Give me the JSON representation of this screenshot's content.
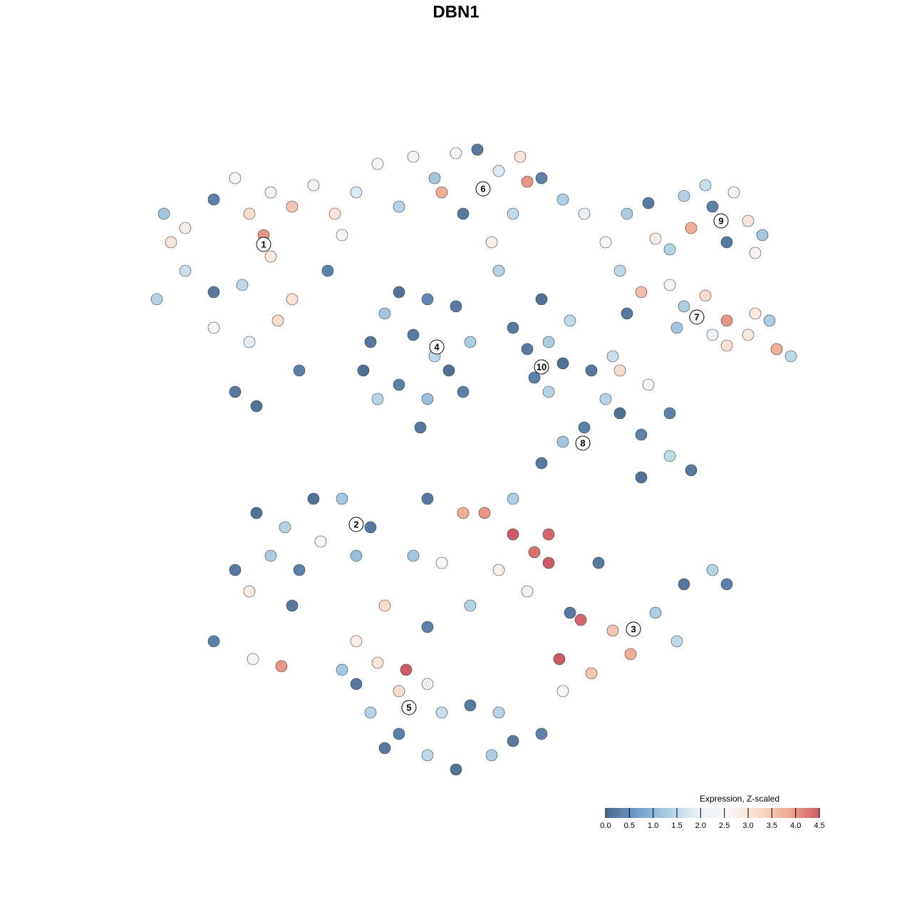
{
  "chart_data": {
    "type": "scatter",
    "title": "DBN1",
    "xlim": [
      0,
      128
    ],
    "ylim": [
      0,
      128
    ],
    "colorbar": {
      "title": "Expression, Z-scaled",
      "lim": [
        0,
        4.5
      ],
      "colors": [
        "#4a6a8f",
        "#6c9bc8",
        "#a9cde3",
        "#e8f0f6",
        "#f7f7f7",
        "#f9dccb",
        "#f0a98d",
        "#d05a63"
      ],
      "ticks": [
        {
          "value": 0,
          "label": "0.0"
        },
        {
          "value": 0.5,
          "label": "0.5"
        },
        {
          "value": 1,
          "label": "1.0"
        },
        {
          "value": 1.5,
          "label": "1.5"
        },
        {
          "value": 2,
          "label": "2.0"
        },
        {
          "value": 2.5,
          "label": "2.5"
        },
        {
          "value": 3,
          "label": "3.0"
        },
        {
          "value": 3.5,
          "label": "3.5"
        },
        {
          "value": 4,
          "label": "4.0"
        },
        {
          "value": 4.5,
          "label": "4.5"
        }
      ]
    },
    "series": [
      {
        "name": "1",
        "label_x": 37,
        "label_y": 93.7,
        "x": [
          23,
          26,
          30,
          33,
          35,
          38,
          41,
          44,
          47,
          50,
          53,
          56,
          26,
          30,
          34,
          38,
          41,
          30,
          35,
          39,
          33,
          36,
          37,
          22,
          46,
          48,
          42,
          24
        ],
        "y": [
          98,
          96,
          100,
          103,
          98,
          101,
          99,
          102,
          98,
          101,
          105,
          99,
          90,
          87,
          88,
          92,
          86,
          82,
          80,
          83,
          73,
          71,
          95,
          86,
          90,
          95,
          76,
          94
        ],
        "values": [
          1.2,
          2.8,
          0.3,
          2.5,
          3.2,
          2.2,
          3.5,
          2.7,
          3.0,
          1.8,
          2.4,
          1.4,
          1.6,
          0.2,
          1.5,
          2.9,
          3.1,
          2.6,
          1.9,
          3.2,
          0.2,
          0.1,
          4.0,
          1.4,
          0.3,
          2.6,
          0.3,
          3.0
        ]
      },
      {
        "name": "4",
        "label_x": 61.3,
        "label_y": 79.3,
        "x": [
          52,
          54,
          56,
          60,
          64,
          66,
          63,
          60,
          56,
          53,
          58,
          61,
          51,
          65,
          59
        ],
        "y": [
          80,
          84,
          87,
          86,
          85,
          80,
          76,
          72,
          74,
          72,
          81,
          78,
          76,
          73,
          68
        ],
        "values": [
          0.2,
          1.2,
          0.1,
          0.4,
          0.2,
          1.3,
          0.1,
          1.1,
          0.3,
          1.4,
          0.2,
          1.5,
          0.1,
          0.3,
          0.2
        ]
      },
      {
        "name": "6",
        "label_x": 67.8,
        "label_y": 101.5,
        "x": [
          58,
          61,
          64,
          67,
          70,
          73,
          76,
          79,
          82,
          72,
          69,
          65,
          62,
          74,
          70,
          85
        ],
        "y": [
          106,
          103,
          106.5,
          107,
          104,
          106,
          103,
          100,
          98,
          98,
          94,
          98,
          101,
          102.5,
          90,
          94
        ],
        "values": [
          2.3,
          1.2,
          2.6,
          0.2,
          1.8,
          3.0,
          0.3,
          1.3,
          2.0,
          1.5,
          2.8,
          0.2,
          3.8,
          4.0,
          1.4,
          2.4
        ]
      },
      {
        "name": "9",
        "label_x": 101.2,
        "label_y": 97,
        "x": [
          88,
          91,
          92,
          96,
          97,
          100,
          103,
          105,
          107,
          102,
          99,
          94,
          106
        ],
        "y": [
          98,
          99.5,
          94.5,
          100.5,
          96,
          99,
          101,
          97,
          95,
          94,
          102,
          93,
          92.5
        ],
        "values": [
          1.3,
          0.2,
          2.8,
          1.4,
          3.8,
          0.3,
          2.6,
          3.0,
          1.2,
          0.2,
          1.6,
          1.4,
          2.7
        ]
      },
      {
        "name": "7",
        "label_x": 97.8,
        "label_y": 83.5,
        "x": [
          87,
          90,
          94,
          96,
          99,
          102,
          105,
          109,
          111,
          100,
          102,
          95,
          88,
          108,
          106
        ],
        "y": [
          90,
          87,
          88,
          85,
          86.5,
          83,
          81,
          79,
          78,
          81,
          79.5,
          82,
          84,
          83,
          84
        ],
        "values": [
          1.5,
          3.6,
          2.4,
          1.3,
          3.2,
          4.0,
          2.9,
          3.8,
          1.5,
          2.1,
          3.1,
          1.2,
          0.2,
          1.3,
          2.9
        ]
      },
      {
        "name": "10",
        "label_x": 76,
        "label_y": 76.5,
        "x": [
          74,
          77,
          79,
          75,
          77,
          72,
          80,
          76
        ],
        "y": [
          79,
          80,
          77,
          75,
          73,
          82,
          83,
          86
        ],
        "values": [
          0.2,
          1.3,
          0.1,
          0.3,
          1.4,
          0.2,
          1.5,
          0.1
        ]
      },
      {
        "name": "8",
        "label_x": 81.8,
        "label_y": 65.8,
        "x": [
          83,
          85,
          87,
          90,
          94,
          97,
          90,
          82,
          79,
          76,
          94,
          87,
          91,
          86
        ],
        "y": [
          76,
          72,
          70,
          67,
          64,
          62,
          61,
          68,
          66,
          63,
          70,
          76,
          74,
          78
        ],
        "values": [
          0.2,
          1.4,
          0.1,
          0.3,
          1.5,
          0.2,
          0.1,
          0.3,
          1.2,
          0.2,
          0.3,
          3.2,
          2.7,
          1.6
        ]
      },
      {
        "name": "2",
        "label_x": 50,
        "label_y": 54.4,
        "x": [
          33,
          36,
          40,
          42,
          45,
          48,
          52,
          35,
          38,
          41,
          30,
          35.5,
          39.5,
          44,
          50
        ],
        "y": [
          48,
          56,
          54,
          48,
          52,
          58,
          54,
          45,
          50,
          43,
          38,
          35.5,
          34.5,
          58,
          50
        ],
        "values": [
          0.2,
          0.1,
          1.4,
          0.3,
          2.4,
          1.2,
          0.2,
          2.9,
          1.3,
          0.2,
          0.3,
          2.6,
          4.0,
          0.1,
          1.1
        ]
      },
      {
        "name": "3",
        "label_x": 88.9,
        "label_y": 39.7,
        "x": [
          60,
          65,
          68,
          72,
          77,
          75,
          77,
          62,
          70,
          66,
          74,
          80,
          81.5,
          86,
          88.5,
          92,
          96,
          100,
          102,
          95,
          78.5,
          83,
          79,
          84,
          72,
          58,
          54,
          60
        ],
        "y": [
          58,
          56,
          56,
          53,
          53,
          50.5,
          49,
          49,
          48,
          43,
          45,
          42,
          41,
          39.5,
          36.2,
          42,
          46,
          48,
          46,
          38,
          35.5,
          33.5,
          31,
          49,
          58,
          50,
          43,
          40
        ],
        "values": [
          0.2,
          3.8,
          4.0,
          4.5,
          4.4,
          4.3,
          4.5,
          2.6,
          2.8,
          1.4,
          2.1,
          0.2,
          4.4,
          3.5,
          3.8,
          1.3,
          0.2,
          1.4,
          0.3,
          1.5,
          4.5,
          3.5,
          2.6,
          0.2,
          1.3,
          1.2,
          3.2,
          0.3
        ]
      },
      {
        "name": "5",
        "label_x": 57.4,
        "label_y": 28.7,
        "x": [
          50,
          53,
          57,
          56,
          50,
          52,
          56,
          60,
          64,
          69,
          72,
          76,
          62,
          66,
          60,
          48,
          70,
          54
        ],
        "y": [
          38,
          35,
          34,
          31,
          32,
          28,
          25,
          22,
          20,
          22,
          24,
          25,
          28,
          29,
          32,
          34,
          28,
          23
        ],
        "values": [
          2.8,
          3.0,
          4.5,
          3.2,
          0.2,
          1.4,
          0.3,
          1.5,
          0.1,
          1.3,
          0.2,
          0.3,
          1.6,
          0.2,
          2.2,
          1.2,
          1.4,
          0.2
        ]
      }
    ]
  }
}
